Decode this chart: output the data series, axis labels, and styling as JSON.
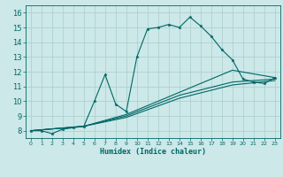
{
  "xlabel": "Humidex (Indice chaleur)",
  "ylabel": "",
  "background_color": "#cce8e8",
  "grid_color": "#aacccc",
  "line_color": "#006666",
  "xlim": [
    -0.5,
    23.5
  ],
  "ylim": [
    7.5,
    16.5
  ],
  "xticks": [
    0,
    1,
    2,
    3,
    4,
    5,
    6,
    7,
    8,
    9,
    10,
    11,
    12,
    13,
    14,
    15,
    16,
    17,
    18,
    19,
    20,
    21,
    22,
    23
  ],
  "yticks": [
    8,
    9,
    10,
    11,
    12,
    13,
    14,
    15,
    16
  ],
  "curve1_x": [
    0,
    1,
    2,
    3,
    4,
    5,
    6,
    7,
    8,
    9,
    10,
    11,
    12,
    13,
    14,
    15,
    16,
    17,
    18,
    19,
    20,
    21,
    22,
    23
  ],
  "curve1_y": [
    8.0,
    8.0,
    7.8,
    8.1,
    8.2,
    8.3,
    10.0,
    11.8,
    9.8,
    9.3,
    13.0,
    14.9,
    15.0,
    15.2,
    15.0,
    15.7,
    15.1,
    14.4,
    13.5,
    12.8,
    11.5,
    11.3,
    11.2,
    11.6
  ],
  "curve2_x": [
    0,
    5,
    9,
    14,
    19,
    23
  ],
  "curve2_y": [
    8.0,
    8.3,
    9.1,
    10.6,
    12.1,
    11.6
  ],
  "curve3_x": [
    0,
    5,
    9,
    14,
    19,
    23
  ],
  "curve3_y": [
    8.0,
    8.3,
    9.0,
    10.4,
    11.3,
    11.5
  ],
  "curve4_x": [
    0,
    5,
    9,
    14,
    19,
    23
  ],
  "curve4_y": [
    8.0,
    8.3,
    8.9,
    10.2,
    11.1,
    11.4
  ]
}
